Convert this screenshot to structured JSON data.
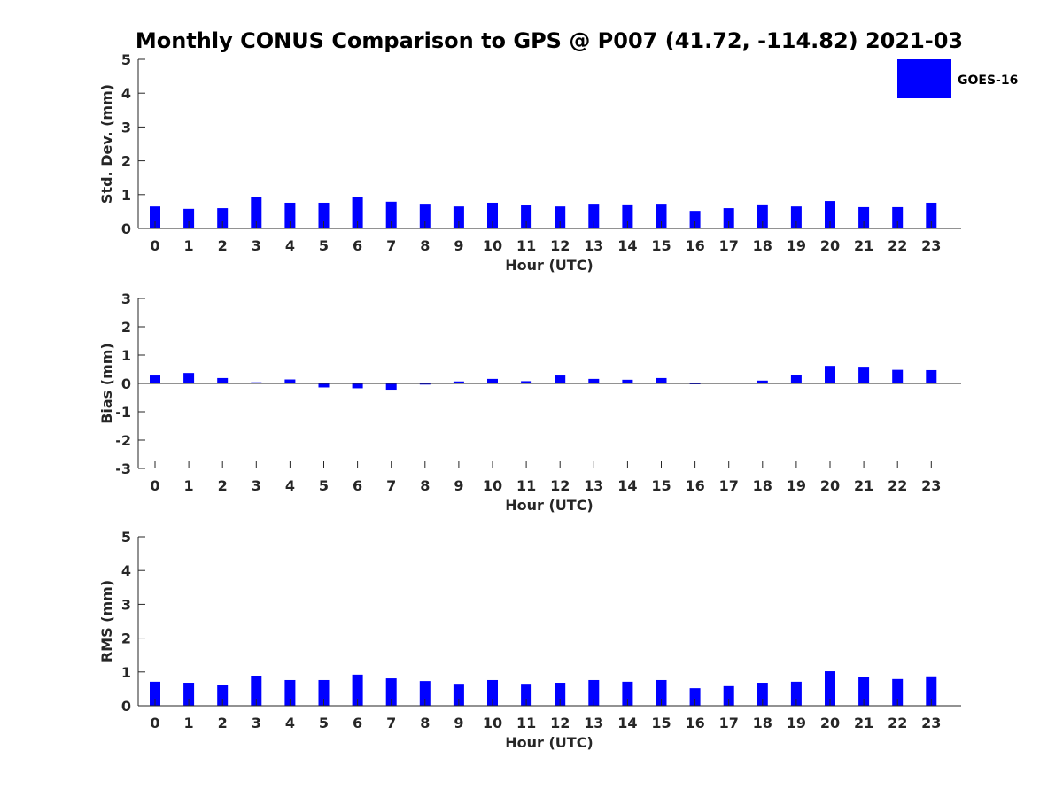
{
  "title": "Monthly CONUS Comparison to GPS @ P007 (41.72, -114.82) 2021-03",
  "legend": {
    "label": "GOES-16",
    "color": "#0000ff",
    "placement": "top-right"
  },
  "chart_data": [
    {
      "type": "bar",
      "title": "",
      "xlabel": "Hour (UTC)",
      "ylabel": "Std. Dev. (mm)",
      "categories": [
        "0",
        "1",
        "2",
        "3",
        "4",
        "5",
        "6",
        "7",
        "8",
        "9",
        "10",
        "11",
        "12",
        "13",
        "14",
        "15",
        "16",
        "17",
        "18",
        "19",
        "20",
        "21",
        "22",
        "23"
      ],
      "series": [
        {
          "name": "GOES-16",
          "values": [
            0.65,
            0.58,
            0.6,
            0.92,
            0.76,
            0.76,
            0.92,
            0.79,
            0.73,
            0.65,
            0.76,
            0.68,
            0.65,
            0.73,
            0.71,
            0.73,
            0.52,
            0.6,
            0.71,
            0.65,
            0.81,
            0.63,
            0.63,
            0.76
          ]
        }
      ],
      "ylim": [
        0,
        5
      ],
      "yticks": [
        0,
        1,
        2,
        3,
        4,
        5
      ],
      "grid": false
    },
    {
      "type": "bar",
      "title": "",
      "xlabel": "Hour (UTC)",
      "ylabel": "Bias (mm)",
      "categories": [
        "0",
        "1",
        "2",
        "3",
        "4",
        "5",
        "6",
        "7",
        "8",
        "9",
        "10",
        "11",
        "12",
        "13",
        "14",
        "15",
        "16",
        "17",
        "18",
        "19",
        "20",
        "21",
        "22",
        "23"
      ],
      "series": [
        {
          "name": "GOES-16",
          "values": [
            0.28,
            0.37,
            0.19,
            0.04,
            0.14,
            -0.14,
            -0.17,
            -0.22,
            -0.04,
            0.07,
            0.16,
            0.08,
            0.28,
            0.16,
            0.13,
            0.19,
            -0.03,
            0.03,
            0.1,
            0.31,
            0.62,
            0.59,
            0.48,
            0.47
          ]
        }
      ],
      "ylim": [
        -3,
        3
      ],
      "yticks": [
        -3,
        -2,
        -1,
        0,
        1,
        2,
        3
      ],
      "grid": false
    },
    {
      "type": "bar",
      "title": "",
      "xlabel": "Hour (UTC)",
      "ylabel": "RMS (mm)",
      "categories": [
        "0",
        "1",
        "2",
        "3",
        "4",
        "5",
        "6",
        "7",
        "8",
        "9",
        "10",
        "11",
        "12",
        "13",
        "14",
        "15",
        "16",
        "17",
        "18",
        "19",
        "20",
        "21",
        "22",
        "23"
      ],
      "series": [
        {
          "name": "GOES-16",
          "values": [
            0.71,
            0.68,
            0.61,
            0.89,
            0.76,
            0.76,
            0.92,
            0.81,
            0.73,
            0.65,
            0.76,
            0.65,
            0.68,
            0.76,
            0.71,
            0.76,
            0.52,
            0.58,
            0.68,
            0.71,
            1.02,
            0.84,
            0.79,
            0.87
          ]
        }
      ],
      "ylim": [
        0,
        5
      ],
      "yticks": [
        0,
        1,
        2,
        3,
        4,
        5
      ],
      "grid": false
    }
  ]
}
